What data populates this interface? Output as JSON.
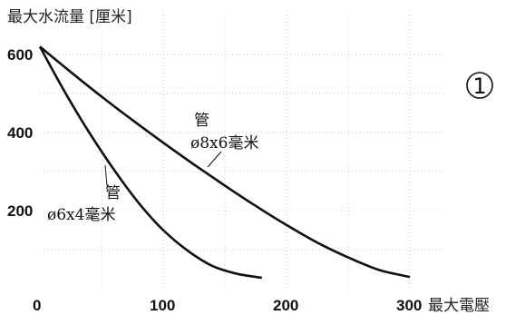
{
  "chart_data": {
    "type": "line",
    "title": "",
    "ylabel": "最大水流量 [厘米]",
    "xlabel": "最大電壓",
    "xlim": [
      0,
      340
    ],
    "ylim": [
      0,
      700
    ],
    "x_ticks": [
      "0",
      "100",
      "200",
      "300"
    ],
    "x_tick_values": [
      0,
      100,
      200,
      300
    ],
    "y_ticks": [
      "200",
      "400",
      "600"
    ],
    "y_tick_values": [
      200,
      400,
      600
    ],
    "grid": true,
    "series": [
      {
        "name": "管 ø8x6毫米",
        "label_line1": "管",
        "label_line2": "ø8x6毫米",
        "x": [
          0,
          25,
          50,
          75,
          100,
          125,
          150,
          175,
          200,
          225,
          250,
          275,
          300
        ],
        "y": [
          620,
          555,
          492,
          432,
          374,
          318,
          264,
          212,
          163,
          118,
          80,
          48,
          30
        ]
      },
      {
        "name": "管 ø6x4毫米",
        "label_line1": "管",
        "label_line2": "ø6x4毫米",
        "x": [
          0,
          20,
          40,
          60,
          80,
          100,
          120,
          140,
          160,
          180
        ],
        "y": [
          620,
          505,
          400,
          305,
          220,
          150,
          97,
          58,
          38,
          28
        ]
      }
    ],
    "badge": "1"
  }
}
